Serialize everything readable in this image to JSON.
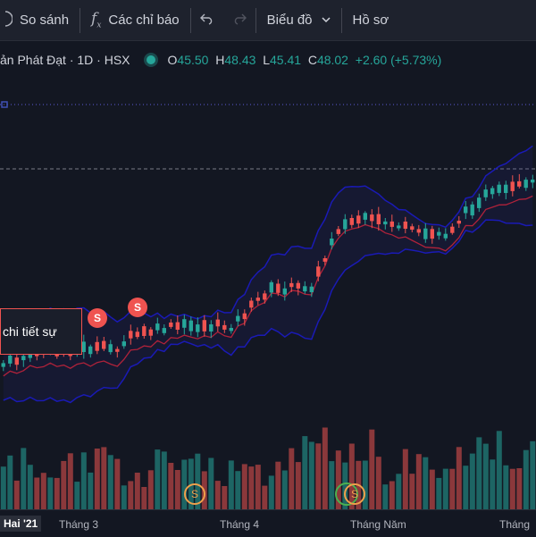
{
  "toolbar": {
    "compare_label": "So sánh",
    "indicators_label": "Các chỉ báo",
    "chart_type_label": "Biểu đồ",
    "profile_label": "Hồ sơ"
  },
  "legend": {
    "symbol": "ản Phát Đạt · 1D · HSX",
    "open_label": "O",
    "open": "45.50",
    "high_label": "H",
    "high": "48.43",
    "low_label": "L",
    "low": "45.41",
    "close_label": "C",
    "close": "48.02",
    "change": "+2.60 (+5.73%)"
  },
  "tooltip": {
    "text": "chi tiết sự"
  },
  "markers": {
    "split": "S"
  },
  "axis": {
    "first": "Hai '21",
    "labels": [
      "Tháng 3",
      "Tháng 4",
      "Tháng Năm",
      "Tháng"
    ]
  },
  "colors": {
    "up": "#26a69a",
    "down": "#ef5350",
    "band": "#1a1ab5",
    "ma": "#b0223a",
    "background": "#131722"
  },
  "icons": [
    "compare-icon",
    "fx-icon",
    "undo-icon",
    "redo-icon",
    "chevron-down-icon"
  ]
}
